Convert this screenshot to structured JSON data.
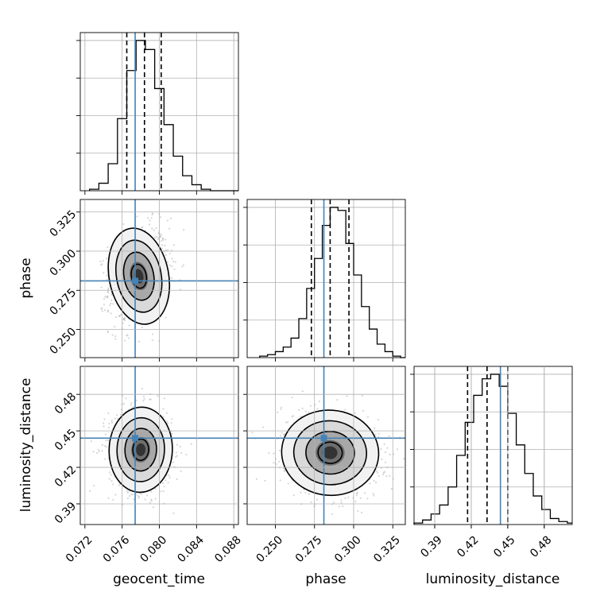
{
  "chart_data": {
    "type": "corner",
    "parameters": [
      {
        "name": "geocent_time",
        "xlabel": "geocent_time",
        "range": [
          0.0715,
          0.0885
        ],
        "ticks": [
          0.072,
          0.076,
          0.08,
          0.084,
          0.088
        ],
        "tick_labels": [
          "0.072",
          "0.076",
          "0.080",
          "0.084",
          "0.088"
        ],
        "truth": 0.0774,
        "quantiles": [
          0.0765,
          0.0784,
          0.0802
        ]
      },
      {
        "name": "phase",
        "xlabel": "phase",
        "ylabel": "phase",
        "range": [
          0.232,
          0.333
        ],
        "ticks": [
          0.25,
          0.275,
          0.3,
          0.325
        ],
        "tick_labels": [
          "0.250",
          "0.275",
          "0.300",
          "0.325"
        ],
        "truth": 0.281,
        "quantiles": [
          0.273,
          0.285,
          0.297
        ]
      },
      {
        "name": "luminosity_distance",
        "xlabel": "luminosity_distance",
        "ylabel": "luminosity_distance",
        "range": [
          0.373,
          0.503
        ],
        "ticks": [
          0.39,
          0.42,
          0.45,
          0.48
        ],
        "tick_labels": [
          "0.39",
          "0.42",
          "0.45",
          "0.48"
        ],
        "truth": 0.444,
        "quantiles": [
          0.417,
          0.433,
          0.45
        ]
      }
    ],
    "histograms": [
      {
        "parameter": "geocent_time",
        "bins": [
          0.0725,
          0.0735,
          0.0745,
          0.0755,
          0.0765,
          0.0775,
          0.0785,
          0.0795,
          0.0805,
          0.0815,
          0.0825,
          0.0835,
          0.0845,
          0.0855
        ],
        "counts": [
          1,
          5,
          18,
          48,
          80,
          100,
          94,
          68,
          44,
          23,
          10,
          4,
          1,
          0
        ]
      },
      {
        "parameter": "phase",
        "bins": [
          0.24,
          0.245,
          0.25,
          0.255,
          0.26,
          0.265,
          0.27,
          0.275,
          0.28,
          0.285,
          0.29,
          0.295,
          0.3,
          0.305,
          0.31,
          0.315,
          0.32,
          0.325,
          0.33
        ],
        "counts": [
          1,
          2,
          4,
          7,
          13,
          26,
          46,
          66,
          88,
          100,
          98,
          76,
          55,
          34,
          19,
          9,
          4,
          1,
          0
        ]
      },
      {
        "parameter": "luminosity_distance",
        "bins": [
          0.373,
          0.38,
          0.387,
          0.394,
          0.401,
          0.408,
          0.415,
          0.422,
          0.429,
          0.436,
          0.443,
          0.45,
          0.457,
          0.464,
          0.471,
          0.478,
          0.485,
          0.492,
          0.499,
          0.503
        ],
        "counts": [
          1,
          3,
          7,
          13,
          25,
          46,
          68,
          86,
          97,
          100,
          92,
          74,
          53,
          34,
          19,
          10,
          4,
          2,
          1
        ]
      }
    ],
    "joint_2d": [
      {
        "x": "geocent_time",
        "y": "phase",
        "mean": [
          0.0778,
          0.284
        ],
        "sd": [
          0.0016,
          0.0155
        ],
        "corr": 0.2
      },
      {
        "x": "geocent_time",
        "y": "luminosity_distance",
        "mean": [
          0.078,
          0.4345
        ],
        "sd": [
          0.0017,
          0.0175
        ],
        "corr": -0.05
      },
      {
        "x": "phase",
        "y": "luminosity_distance",
        "mean": [
          0.285,
          0.432
        ],
        "sd": [
          0.0155,
          0.0175
        ],
        "corr": -0.15
      }
    ],
    "contour_levels_sigma": [
      0.5,
      1.0,
      1.5,
      2.0
    ],
    "grid": true,
    "truth_color": "#4682b4"
  }
}
